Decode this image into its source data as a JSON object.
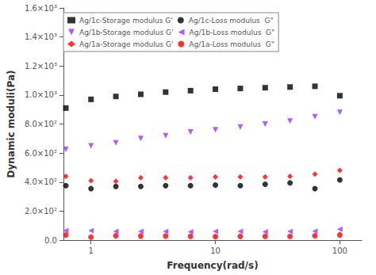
{
  "chart_data": {
    "type": "scatter",
    "xlabel": "Frequency(rad/s)",
    "ylabel": "Dynamic moduli(Pa)",
    "log": "x",
    "grid": false,
    "legend": "upper left",
    "x": [
      0.628,
      1.0,
      1.585,
      2.512,
      3.981,
      6.31,
      10.0,
      15.85,
      25.12,
      39.81,
      63.1,
      100.0
    ],
    "xlim": [
      0.6,
      150
    ],
    "xticks": [
      1,
      10,
      100
    ],
    "ylim": [
      0,
      1600
    ],
    "yticks": [
      {
        "value": 0,
        "label": "0.0"
      },
      {
        "value": 200,
        "label": "2.0×10²"
      },
      {
        "value": 400,
        "label": "4.0×10²"
      },
      {
        "value": 600,
        "label": "6.0×10²"
      },
      {
        "value": 800,
        "label": "8.0×10²"
      },
      {
        "value": 1000,
        "label": "1.0×10³"
      },
      {
        "value": 1200,
        "label": "1.2×10³"
      },
      {
        "value": 1400,
        "label": "1.4×10³"
      },
      {
        "value": 1600,
        "label": "1.6×10³"
      }
    ],
    "series": [
      {
        "name": "Ag/1c-Storage modulus G'",
        "color": "#000000",
        "marker": "square",
        "values": [
          910,
          970,
          990,
          1005,
          1020,
          1030,
          1040,
          1045,
          1050,
          1055,
          1060,
          995
        ]
      },
      {
        "name": "Ag/1c-Loss modulus  G\"",
        "color": "#000000",
        "marker": "circle",
        "values": [
          375,
          355,
          370,
          370,
          375,
          375,
          380,
          375,
          385,
          395,
          355,
          415
        ]
      },
      {
        "name": "Ag/1b-Storage modulus G'",
        "color": "#9933FF",
        "marker": "triangle_down",
        "values": [
          625,
          650,
          670,
          700,
          720,
          745,
          760,
          780,
          800,
          820,
          850,
          880
        ]
      },
      {
        "name": "Ag/1b-Loss modulus  G\"",
        "color": "#9933FF",
        "marker": "triangle_left",
        "values": [
          65,
          65,
          60,
          60,
          60,
          58,
          60,
          60,
          58,
          60,
          62,
          75
        ]
      },
      {
        "name": "Ag/1a-Storage modulus G'",
        "color": "#FF0000",
        "marker": "diamond",
        "values": [
          440,
          410,
          405,
          430,
          430,
          430,
          435,
          435,
          435,
          440,
          455,
          480
        ]
      },
      {
        "name": "Ag/1a-Loss modulus  G\"",
        "color": "#FF0000",
        "marker": "circle",
        "values": [
          35,
          20,
          30,
          28,
          28,
          26,
          25,
          26,
          26,
          26,
          30,
          36
        ]
      }
    ]
  }
}
